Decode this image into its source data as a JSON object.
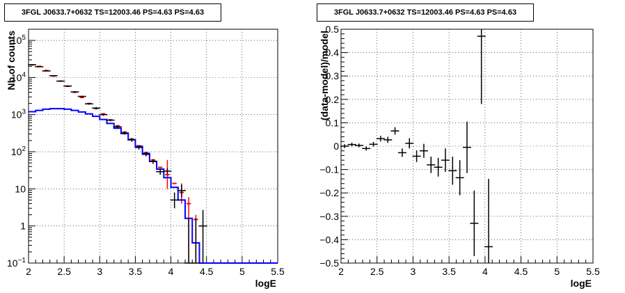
{
  "chart_data": [
    {
      "type": "line",
      "title": "3FGL J0633.7+0632 TS=12003.46 PS=4.63 PS=4.63",
      "xlabel": "logE",
      "ylabel": "Nb of counts",
      "xlim": [
        2,
        5.5
      ],
      "ylim": [
        0.1,
        200000
      ],
      "yscale": "log",
      "grid": true,
      "x_ticks": [
        "2",
        "2.5",
        "3",
        "3.5",
        "4",
        "4.5",
        "5",
        "5.5"
      ],
      "y_ticks": [
        "10^-1",
        "1",
        "10",
        "10^2",
        "10^3",
        "10^4",
        "10^5"
      ],
      "series": [
        {
          "color": "#ff0000",
          "style": "model-steps",
          "bins": [
            [
              2.0,
              2.1,
              22000
            ],
            [
              2.1,
              2.2,
              20000
            ],
            [
              2.2,
              2.3,
              15500
            ],
            [
              2.3,
              2.4,
              11000
            ],
            [
              2.4,
              2.5,
              8000
            ],
            [
              2.5,
              2.6,
              5800
            ],
            [
              2.6,
              2.7,
              4000
            ],
            [
              2.7,
              2.8,
              2900
            ],
            [
              2.8,
              2.9,
              2000
            ],
            [
              2.9,
              3.0,
              1450
            ],
            [
              3.0,
              3.1,
              1050
            ],
            [
              3.1,
              3.2,
              720
            ],
            [
              3.2,
              3.3,
              500
            ],
            [
              3.3,
              3.4,
              340
            ],
            [
              3.4,
              3.5,
              220
            ],
            [
              3.5,
              3.6,
              145
            ],
            [
              3.6,
              3.7,
              95
            ],
            [
              3.7,
              3.8,
              60
            ],
            [
              3.8,
              3.9,
              38
            ],
            [
              3.9,
              4.0,
              24
            ],
            [
              4.0,
              4.1,
              14
            ],
            [
              4.1,
              4.2,
              8
            ],
            [
              4.2,
              4.3,
              4
            ],
            [
              4.3,
              4.4,
              1.5
            ]
          ]
        },
        {
          "color": "#0000ff",
          "style": "component-steps",
          "bins": [
            [
              2.0,
              2.1,
              1200
            ],
            [
              2.1,
              2.2,
              1300
            ],
            [
              2.2,
              2.3,
              1400
            ],
            [
              2.3,
              2.4,
              1450
            ],
            [
              2.4,
              2.5,
              1450
            ],
            [
              2.5,
              2.6,
              1400
            ],
            [
              2.6,
              2.7,
              1300
            ],
            [
              2.7,
              2.8,
              1180
            ],
            [
              2.8,
              2.9,
              1050
            ],
            [
              2.9,
              3.0,
              900
            ],
            [
              3.0,
              3.1,
              740
            ],
            [
              3.1,
              3.2,
              580
            ],
            [
              3.2,
              3.3,
              430
            ],
            [
              3.3,
              3.4,
              310
            ],
            [
              3.4,
              3.5,
              210
            ],
            [
              3.5,
              3.6,
              140
            ],
            [
              3.6,
              3.7,
              90
            ],
            [
              3.7,
              3.8,
              55
            ],
            [
              3.8,
              3.9,
              34
            ],
            [
              3.9,
              4.0,
              20
            ],
            [
              4.0,
              4.1,
              11
            ],
            [
              4.1,
              4.2,
              5
            ],
            [
              4.2,
              4.3,
              1.6
            ],
            [
              4.3,
              4.4,
              0.35
            ],
            [
              4.4,
              4.5,
              0.1
            ],
            [
              4.5,
              5.5,
              0.1
            ]
          ]
        },
        {
          "color": "#000000",
          "style": "data-points",
          "points": [
            [
              2.05,
              22000,
              21400,
              22600
            ],
            [
              2.15,
              19500,
              18900,
              20100
            ],
            [
              2.25,
              15000,
              14500,
              15500
            ],
            [
              2.35,
              11200,
              10800,
              11600
            ],
            [
              2.45,
              8000,
              7700,
              8300
            ],
            [
              2.55,
              5900,
              5600,
              6200
            ],
            [
              2.65,
              4100,
              3900,
              4300
            ],
            [
              2.75,
              3100,
              2950,
              3250
            ],
            [
              2.85,
              1950,
              1850,
              2050
            ],
            [
              2.95,
              1500,
              1400,
              1600
            ],
            [
              3.05,
              1000,
              930,
              1070
            ],
            [
              3.15,
              710,
              660,
              760
            ],
            [
              3.25,
              470,
              430,
              510
            ],
            [
              3.35,
              320,
              290,
              350
            ],
            [
              3.45,
              210,
              185,
              235
            ],
            [
              3.55,
              130,
              115,
              145
            ],
            [
              3.65,
              85,
              75,
              97
            ],
            [
              3.75,
              55,
              47,
              63
            ],
            [
              3.85,
              29,
              24,
              35
            ],
            [
              3.95,
              30,
              25,
              36
            ],
            [
              4.05,
              5,
              3,
              8
            ],
            [
              4.15,
              9,
              6,
              13
            ],
            [
              4.25,
              0.1,
              0.1,
              1.6
            ],
            [
              4.35,
              0.1,
              0.1,
              1.6
            ],
            [
              4.45,
              1,
              0.1,
              2.7
            ]
          ]
        }
      ]
    },
    {
      "type": "scatter",
      "title": "3FGL J0633.7+0632 TS=12003.46 PS=4.63 PS=4.63",
      "xlabel": "logE",
      "ylabel": "(data-model)/model",
      "xlim": [
        2,
        5.5
      ],
      "ylim": [
        -0.5,
        0.5
      ],
      "grid": true,
      "x_ticks": [
        "2",
        "2.5",
        "3",
        "3.5",
        "4",
        "4.5",
        "5",
        "5.5"
      ],
      "y_ticks": [
        "−0.5",
        "−0.4",
        "−0.3",
        "−0.2",
        "−0.1",
        "0",
        "0.1",
        "0.2",
        "0.3",
        "0.4",
        "0.5"
      ],
      "series": [
        {
          "color": "#000000",
          "points": [
            [
              2.05,
              0.0,
              0.008
            ],
            [
              2.15,
              0.007,
              0.008
            ],
            [
              2.25,
              0.003,
              0.008
            ],
            [
              2.35,
              -0.01,
              0.009
            ],
            [
              2.45,
              0.008,
              0.01
            ],
            [
              2.55,
              0.032,
              0.012
            ],
            [
              2.65,
              0.027,
              0.013
            ],
            [
              2.75,
              0.065,
              0.016
            ],
            [
              2.85,
              -0.028,
              0.018
            ],
            [
              2.95,
              0.012,
              0.022
            ],
            [
              3.05,
              -0.043,
              0.025
            ],
            [
              3.15,
              -0.02,
              0.03
            ],
            [
              3.25,
              -0.08,
              0.035
            ],
            [
              3.35,
              -0.09,
              0.04
            ],
            [
              3.45,
              -0.06,
              0.05
            ],
            [
              3.55,
              -0.105,
              0.06
            ],
            [
              3.65,
              -0.135,
              0.075
            ],
            [
              3.75,
              -0.005,
              0.11
            ],
            [
              3.85,
              -0.33,
              0.14
            ],
            [
              3.95,
              0.47,
              0.29
            ],
            [
              4.05,
              -0.43,
              0.29
            ]
          ]
        }
      ]
    }
  ]
}
